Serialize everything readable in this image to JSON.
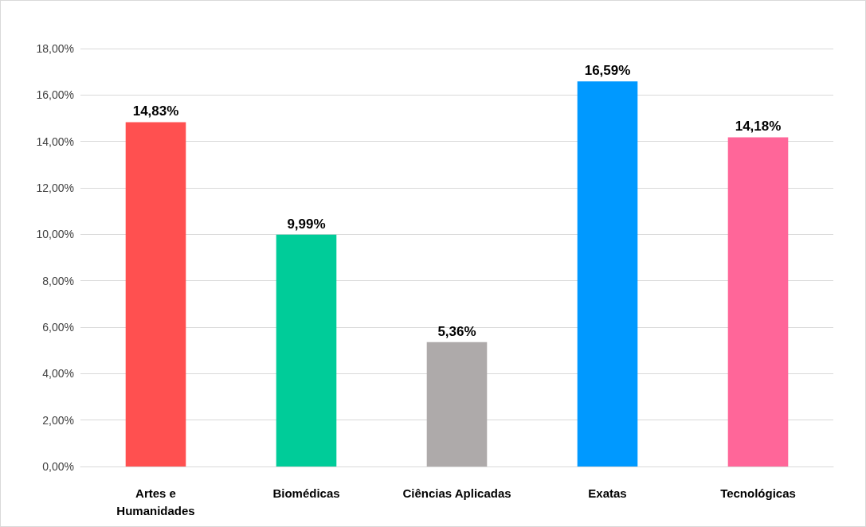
{
  "chart_data": {
    "type": "bar",
    "categories": [
      "Artes e\nHumanidades",
      "Biomédicas",
      "Ciências Aplicadas",
      "Exatas",
      "Tecnológicas"
    ],
    "values": [
      14.83,
      9.99,
      5.36,
      16.59,
      14.18
    ],
    "colors": [
      "#ff5050",
      "#00cc99",
      "#aeaaaa",
      "#0099ff",
      "#ff6699"
    ],
    "value_labels": [
      "14,83%",
      "9,99%",
      "5,36%",
      "16,59%",
      "14,18%"
    ],
    "ylim": [
      0,
      18
    ],
    "yticks": [
      {
        "value": 0,
        "label": "0,00%"
      },
      {
        "value": 2,
        "label": "2,00%"
      },
      {
        "value": 4,
        "label": "4,00%"
      },
      {
        "value": 6,
        "label": "6,00%"
      },
      {
        "value": 8,
        "label": "8,00%"
      },
      {
        "value": 10,
        "label": "10,00%"
      },
      {
        "value": 12,
        "label": "12,00%"
      },
      {
        "value": 14,
        "label": "14,00%"
      },
      {
        "value": 16,
        "label": "16,00%"
      },
      {
        "value": 18,
        "label": "18,00%"
      }
    ],
    "grid": true
  }
}
